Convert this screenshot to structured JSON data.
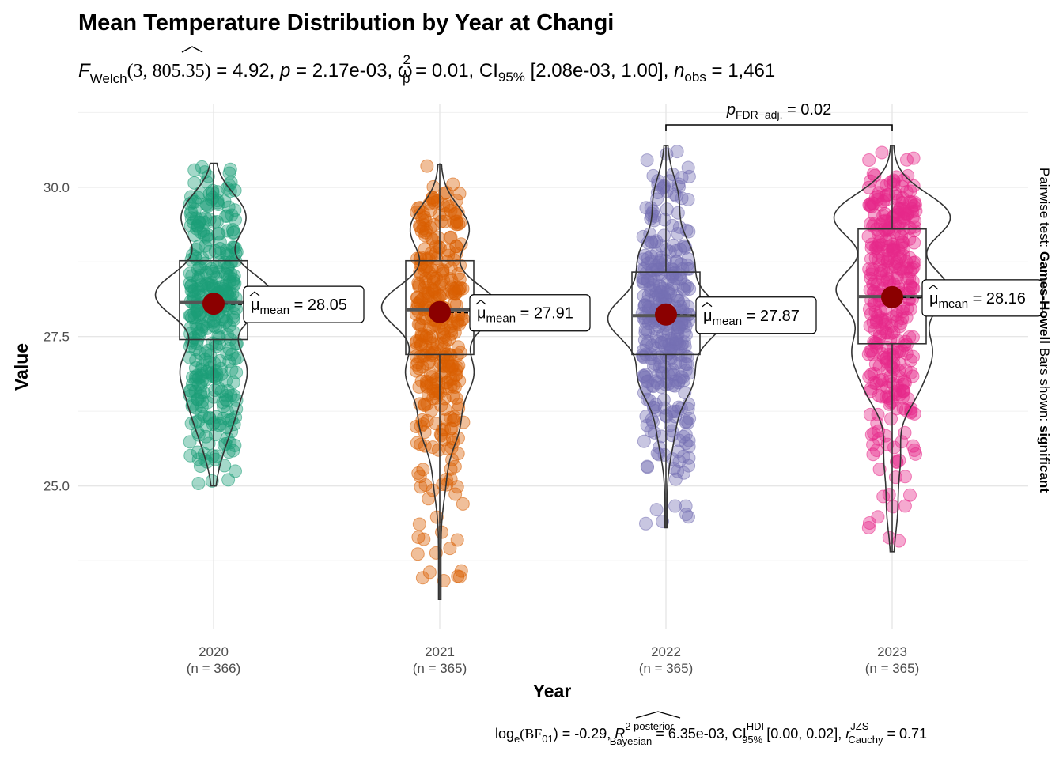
{
  "chart_data": {
    "type": "violin-box-scatter",
    "title": "Mean Temperature Distribution by Year at Changi",
    "subtitle": {
      "F": "F",
      "F_sub": "Welch",
      "F_args": "(3, 805.35)",
      "F_val": " = 4.92, ",
      "p": "p",
      "p_val": " = 2.17e-03, ",
      "omega": "ω",
      "omega_sup": "2",
      "omega_sub": "p",
      "omega_val": " = 0.01, CI",
      "ci_sub": "95%",
      "ci_val": " [2.08e-03, 1.00], ",
      "n": "n",
      "n_sub": "obs",
      "n_val": " = 1,461"
    },
    "xlabel": "Year",
    "ylabel": "Value",
    "ylim": [
      22.6,
      31.4
    ],
    "yticks": [
      25.0,
      27.5,
      30.0
    ],
    "ytick_labels": [
      "25.0",
      "27.5",
      "30.0"
    ],
    "categories": [
      "2020",
      "2021",
      "2022",
      "2023"
    ],
    "n_labels": [
      "(n = 366)",
      "(n = 365)",
      "(n = 365)",
      "(n = 365)"
    ],
    "colors": [
      "#1b9e77",
      "#d95f02",
      "#7570b3",
      "#e7298a"
    ],
    "mean_color": "#8b0000",
    "groups": [
      {
        "year": "2020",
        "n": 366,
        "min": 25.0,
        "q1": 27.45,
        "median": 28.07,
        "q3": 28.77,
        "max": 30.4,
        "mean": 28.05,
        "mean_label": "28.05",
        "clusters": [
          [
            28.2,
            1.0
          ],
          [
            29.5,
            0.55
          ],
          [
            27.0,
            0.5
          ],
          [
            26.3,
            0.28
          ],
          [
            25.7,
            0.12
          ]
        ]
      },
      {
        "year": "2021",
        "n": 365,
        "min": 23.1,
        "q1": 27.2,
        "median": 27.95,
        "q3": 28.77,
        "max": 30.4,
        "mean": 27.91,
        "mean_label": "27.91",
        "clusters": [
          [
            28.0,
            1.0
          ],
          [
            29.3,
            0.5
          ],
          [
            26.9,
            0.55
          ],
          [
            26.0,
            0.3
          ],
          [
            25.1,
            0.08
          ]
        ]
      },
      {
        "year": "2022",
        "n": 365,
        "min": 24.3,
        "q1": 27.2,
        "median": 27.85,
        "q3": 28.58,
        "max": 30.7,
        "mean": 27.87,
        "mean_label": "27.87",
        "clusters": [
          [
            27.8,
            1.0
          ],
          [
            28.8,
            0.45
          ],
          [
            29.8,
            0.2
          ],
          [
            26.8,
            0.45
          ],
          [
            25.9,
            0.12
          ]
        ]
      },
      {
        "year": "2023",
        "n": 365,
        "min": 23.9,
        "q1": 27.38,
        "median": 28.17,
        "q3": 29.3,
        "max": 30.7,
        "mean": 28.16,
        "mean_label": "28.16",
        "clusters": [
          [
            28.3,
            0.8
          ],
          [
            29.5,
            0.85
          ],
          [
            27.3,
            0.5
          ],
          [
            26.6,
            0.3
          ],
          [
            25.5,
            0.1
          ],
          [
            24.6,
            0.06
          ]
        ]
      }
    ],
    "mean_label_prefix": "μ",
    "mean_label_sub": "mean",
    "comparison": {
      "from": "2022",
      "to": "2023",
      "label_p": "p",
      "label_sub": "FDR−adj.",
      "label_val": " = 0.02"
    },
    "side_label": {
      "prefix": "Pairwise test: ",
      "test": "Games-Howell",
      "middle": " Bars shown: ",
      "shown": "significant"
    },
    "footer": {
      "logbf": "log",
      "logbf_sub": "e",
      "bf": "(BF",
      "bf_sub": "01",
      "bf_val": ") = -0.29, ",
      "r2": "R",
      "r2_sup": "2 posterior",
      "r2_sub": "Bayesian",
      "r2_val": " = 6.35e-03, CI",
      "ci_sup": "HDI",
      "ci_sub": "95%",
      "ci_val": " [0.00, 0.02], ",
      "r": "r",
      "r_sup": "JZS",
      "r_sub": "Cauchy",
      "r_val": " = 0.71"
    }
  }
}
